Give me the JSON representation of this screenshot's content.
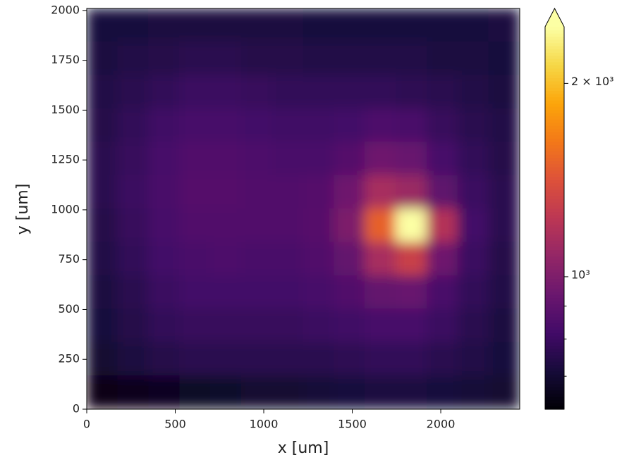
{
  "chart_data": {
    "type": "heatmap",
    "xlabel": "x [um]",
    "ylabel": "y [um]",
    "xlim": [
      0,
      2446
    ],
    "ylim": [
      0,
      2010
    ],
    "xticks": [
      0,
      500,
      1000,
      1500,
      2000
    ],
    "yticks": [
      0,
      250,
      500,
      750,
      1000,
      1250,
      1500,
      1750,
      2000
    ],
    "colormap": "inferno",
    "color_scale": "log",
    "clim": [
      622,
      2450
    ],
    "cbar_extend": "max",
    "cbar_ticks": [
      {
        "value": 1000,
        "label": "10³"
      },
      {
        "value": 2000,
        "label": "2 × 10³"
      }
    ],
    "cbar_minor_ticks": [
      700,
      800,
      900
    ],
    "z": [
      [
        720,
        720,
        730,
        730,
        730,
        730,
        730,
        720,
        720,
        720,
        720,
        720,
        720,
        730
      ],
      [
        730,
        740,
        750,
        760,
        760,
        750,
        750,
        740,
        740,
        740,
        740,
        730,
        730,
        720
      ],
      [
        740,
        760,
        780,
        800,
        800,
        790,
        780,
        780,
        780,
        780,
        770,
        760,
        740,
        730
      ],
      [
        750,
        780,
        810,
        830,
        830,
        820,
        810,
        810,
        820,
        850,
        840,
        790,
        760,
        740
      ],
      [
        760,
        790,
        830,
        860,
        860,
        850,
        840,
        840,
        870,
        950,
        930,
        830,
        780,
        750
      ],
      [
        760,
        800,
        840,
        870,
        870,
        860,
        860,
        870,
        950,
        1150,
        1100,
        900,
        800,
        760
      ],
      [
        750,
        790,
        830,
        860,
        860,
        860,
        860,
        880,
        1000,
        1500,
        2450,
        1200,
        820,
        760
      ],
      [
        740,
        780,
        820,
        840,
        850,
        840,
        840,
        860,
        920,
        1150,
        1300,
        950,
        800,
        750
      ],
      [
        730,
        760,
        800,
        820,
        820,
        820,
        820,
        830,
        860,
        920,
        930,
        840,
        780,
        740
      ],
      [
        720,
        750,
        780,
        790,
        790,
        790,
        790,
        800,
        810,
        830,
        830,
        800,
        760,
        730
      ],
      [
        700,
        730,
        750,
        760,
        760,
        760,
        760,
        760,
        770,
        780,
        780,
        760,
        740,
        720
      ],
      [
        650,
        660,
        670,
        680,
        690,
        700,
        700,
        710,
        720,
        730,
        730,
        720,
        710,
        700
      ]
    ]
  }
}
